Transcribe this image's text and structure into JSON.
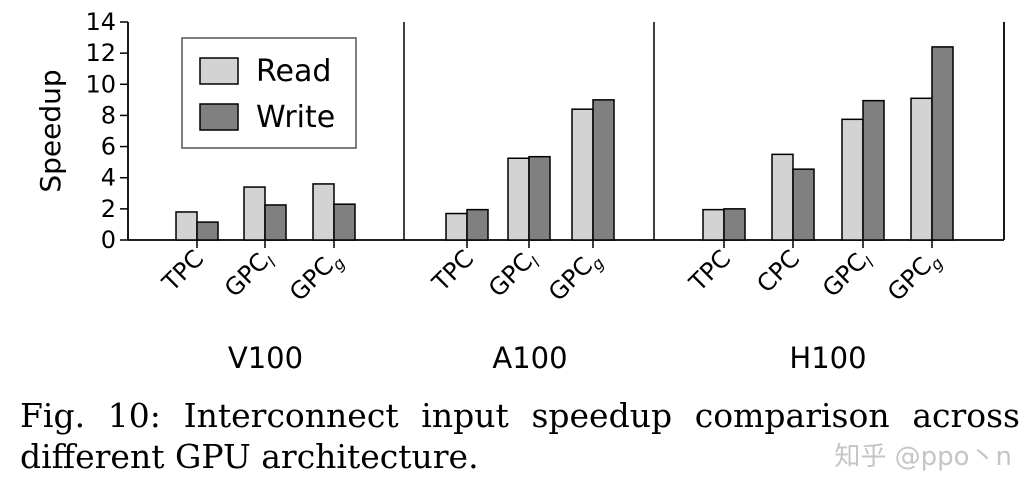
{
  "chart_data": {
    "type": "bar",
    "ylabel": "Speedup",
    "ylim": [
      0,
      14
    ],
    "yticks": [
      "0",
      "2",
      "4",
      "6",
      "8",
      "10",
      "12",
      "14"
    ],
    "legend": {
      "placement": "top-left",
      "entries": [
        "Read",
        "Write"
      ]
    },
    "series_colors": {
      "Read": "#d3d3d3",
      "Write": "#808080"
    },
    "groups": [
      {
        "name": "V100",
        "categories": [
          {
            "base": "TPC",
            "sub": ""
          },
          {
            "base": "GPC",
            "sub": "l"
          },
          {
            "base": "GPC",
            "sub": "g"
          }
        ],
        "series": [
          {
            "name": "Read",
            "values": [
              1.8,
              3.4,
              3.6
            ]
          },
          {
            "name": "Write",
            "values": [
              1.15,
              2.25,
              2.3
            ]
          }
        ]
      },
      {
        "name": "A100",
        "categories": [
          {
            "base": "TPC",
            "sub": ""
          },
          {
            "base": "GPC",
            "sub": "l"
          },
          {
            "base": "GPC",
            "sub": "g"
          }
        ],
        "series": [
          {
            "name": "Read",
            "values": [
              1.7,
              5.25,
              8.4
            ]
          },
          {
            "name": "Write",
            "values": [
              1.95,
              5.35,
              9.0
            ]
          }
        ]
      },
      {
        "name": "H100",
        "categories": [
          {
            "base": "TPC",
            "sub": ""
          },
          {
            "base": "CPC",
            "sub": ""
          },
          {
            "base": "GPC",
            "sub": "l"
          },
          {
            "base": "GPC",
            "sub": "g"
          }
        ],
        "series": [
          {
            "name": "Read",
            "values": [
              1.95,
              5.5,
              7.75,
              9.1
            ]
          },
          {
            "name": "Write",
            "values": [
              2.0,
              4.55,
              8.95,
              12.4
            ]
          }
        ]
      }
    ]
  },
  "caption": "Fig. 10: Interconnect input speedup comparison across different GPU architecture.",
  "watermark": "知乎 @ppo丶n"
}
